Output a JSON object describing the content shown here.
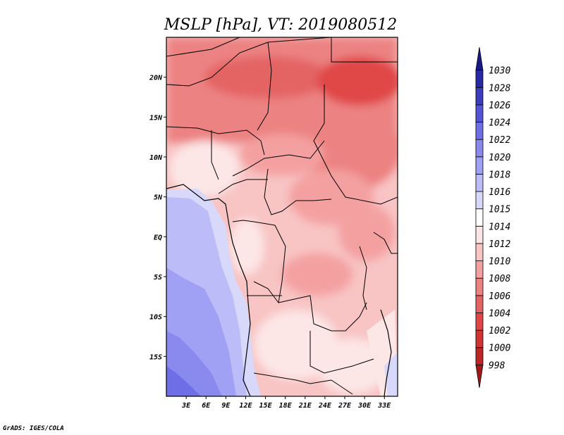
{
  "chart_data": {
    "type": "heatmap",
    "title": "MSLP [hPa], VT: 2019080512",
    "x_ticks": [
      "3E",
      "6E",
      "9E",
      "12E",
      "15E",
      "18E",
      "21E",
      "24E",
      "27E",
      "30E",
      "33E"
    ],
    "x_tick_values": [
      3,
      6,
      9,
      12,
      15,
      18,
      21,
      24,
      27,
      30,
      33
    ],
    "y_ticks": [
      "20N",
      "15N",
      "10N",
      "5N",
      "EQ",
      "5S",
      "10S",
      "15S"
    ],
    "y_tick_values": [
      20,
      15,
      10,
      5,
      0,
      -5,
      -10,
      -15
    ],
    "xlim": [
      0,
      35
    ],
    "ylim": [
      -20,
      25
    ],
    "colorbar": {
      "levels": [
        "998",
        "1000",
        "1002",
        "1004",
        "1006",
        "1008",
        "1010",
        "1012",
        "1014",
        "1015",
        "1016",
        "1018",
        "1020",
        "1022",
        "1024",
        "1026",
        "1028",
        "1030"
      ],
      "colors": [
        "#a51616",
        "#be2626",
        "#d23434",
        "#e04646",
        "#e46464",
        "#ec8282",
        "#f4a0a0",
        "#f8c4c4",
        "#fde6e6",
        "#ffffff",
        "#d8d8fa",
        "#bcbcf8",
        "#a0a0f4",
        "#8a8aee",
        "#6e6ee6",
        "#5454d6",
        "#3c3cc0",
        "#2828a4",
        "#1a1a86"
      ],
      "extends": "both"
    }
  },
  "footer": "GrADS: IGES/COLA"
}
